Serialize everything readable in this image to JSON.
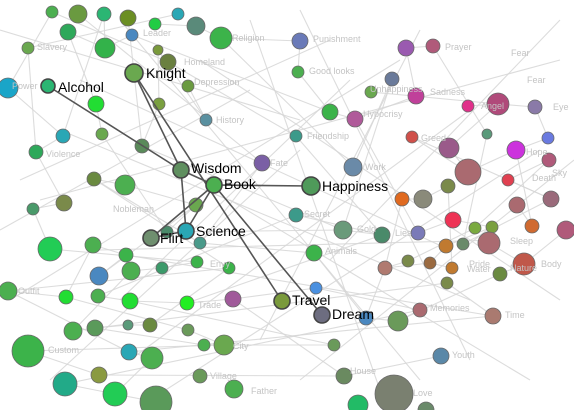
{
  "graph": {
    "highlight_edge_color": "#555555",
    "background_edge_color": "#d6d6d6",
    "highlighted_nodes": [
      {
        "id": "alcohol",
        "label": "Alcohol",
        "color": "#2bb673"
      },
      {
        "id": "knight",
        "label": "Knight",
        "color": "#6aa84f"
      },
      {
        "id": "wisdom",
        "label": "Wisdom",
        "color": "#5f8f5f"
      },
      {
        "id": "book",
        "label": "Book",
        "color": "#4caf50"
      },
      {
        "id": "happiness",
        "label": "Happiness",
        "color": "#4f9a5a"
      },
      {
        "id": "flirt",
        "label": "Flirt",
        "color": "#6f8f6f"
      },
      {
        "id": "science",
        "label": "Science",
        "color": "#2aa7b5"
      },
      {
        "id": "travel",
        "label": "Travel",
        "color": "#7a9a3c"
      },
      {
        "id": "dream",
        "label": "Dream",
        "color": "#6d6d80"
      }
    ],
    "highlighted_edges": [
      [
        "alcohol",
        "wisdom"
      ],
      [
        "knight",
        "wisdom"
      ],
      [
        "knight",
        "travel"
      ],
      [
        "wisdom",
        "book"
      ],
      [
        "book",
        "happiness"
      ],
      [
        "book",
        "flirt"
      ],
      [
        "book",
        "science"
      ],
      [
        "book",
        "dream"
      ],
      [
        "wisdom",
        "science"
      ],
      [
        "flirt",
        "science"
      ]
    ],
    "background_labels": [
      "Slavery",
      "Leader",
      "Religion",
      "Punishment",
      "Prayer",
      "Fear",
      "Power",
      "Homeland",
      "Good looks",
      "Depression",
      "Hypocrisy",
      "Unhappiness",
      "Sadness",
      "Angel",
      "Eye",
      "History",
      "Friendship",
      "Greed",
      "Violence",
      "Fate",
      "Work",
      "Hope",
      "Nobleman",
      "Secret",
      "Gold",
      "Lies",
      "Nature",
      "Envy",
      "Animals",
      "Pride",
      "Body",
      "Outfit",
      "Love",
      "Memories",
      "Time",
      "Custom",
      "City",
      "Father",
      "Village",
      "Youth",
      "House",
      "Death",
      "Trade",
      "Sleep",
      "Fear",
      "Water",
      "Sky"
    ]
  }
}
